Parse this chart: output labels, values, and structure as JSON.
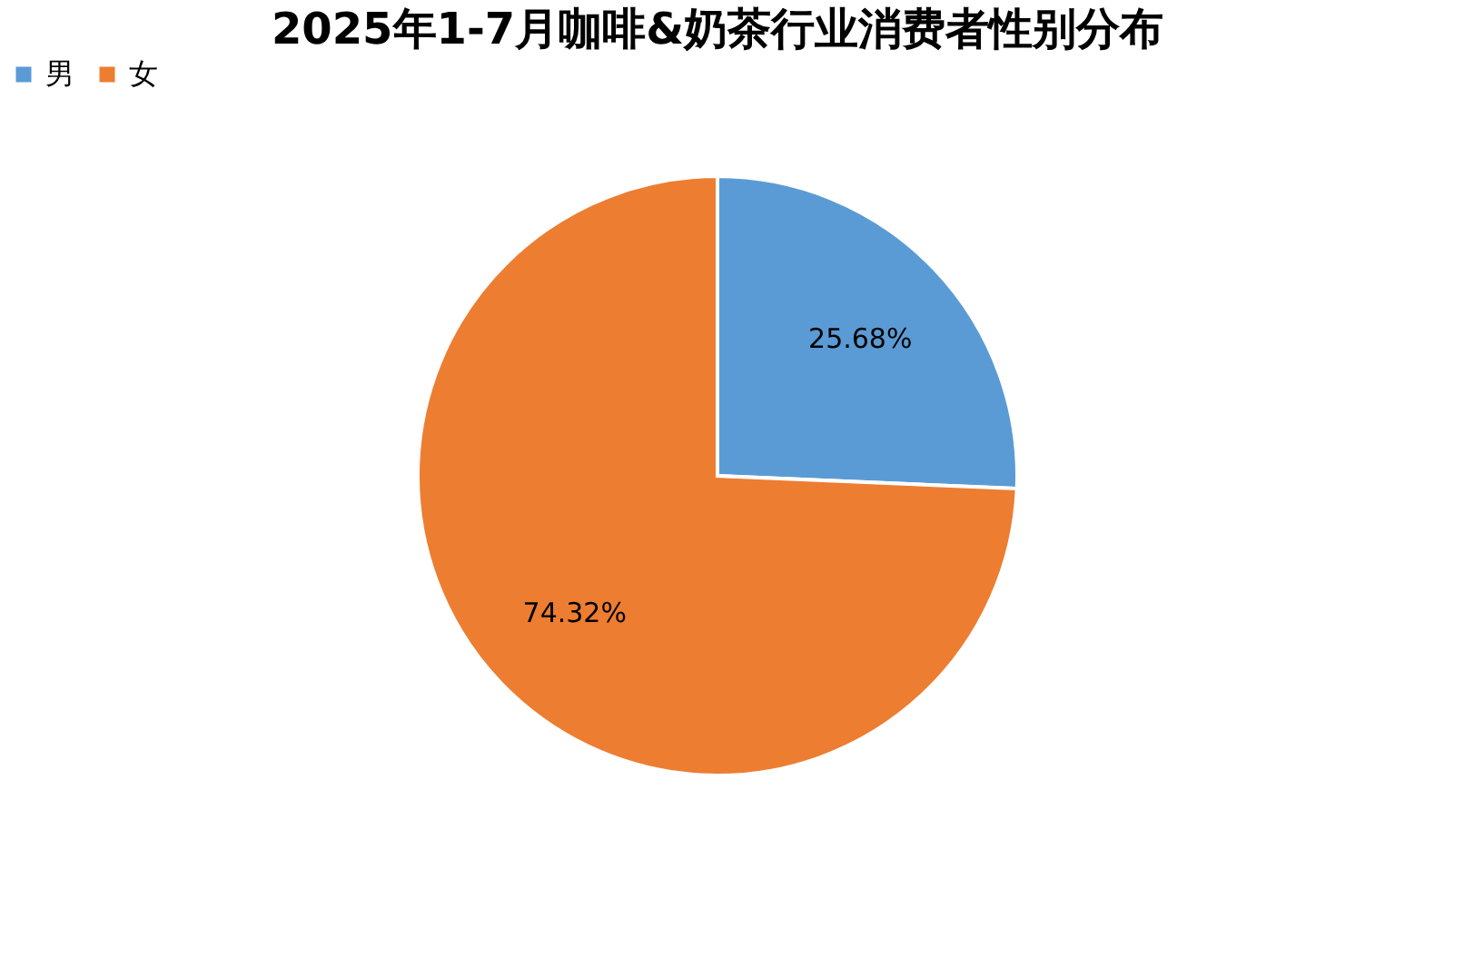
{
  "chart_data": {
    "type": "pie",
    "title": "2025年1-7月咖啡&奶茶行业消费者性别分布",
    "categories": [
      "男",
      "女"
    ],
    "values": [
      25.68,
      74.32
    ],
    "colors": [
      "#5b9bd5",
      "#ed7d31"
    ],
    "value_labels": [
      "25.68%",
      "74.32%"
    ],
    "legend": "top"
  }
}
